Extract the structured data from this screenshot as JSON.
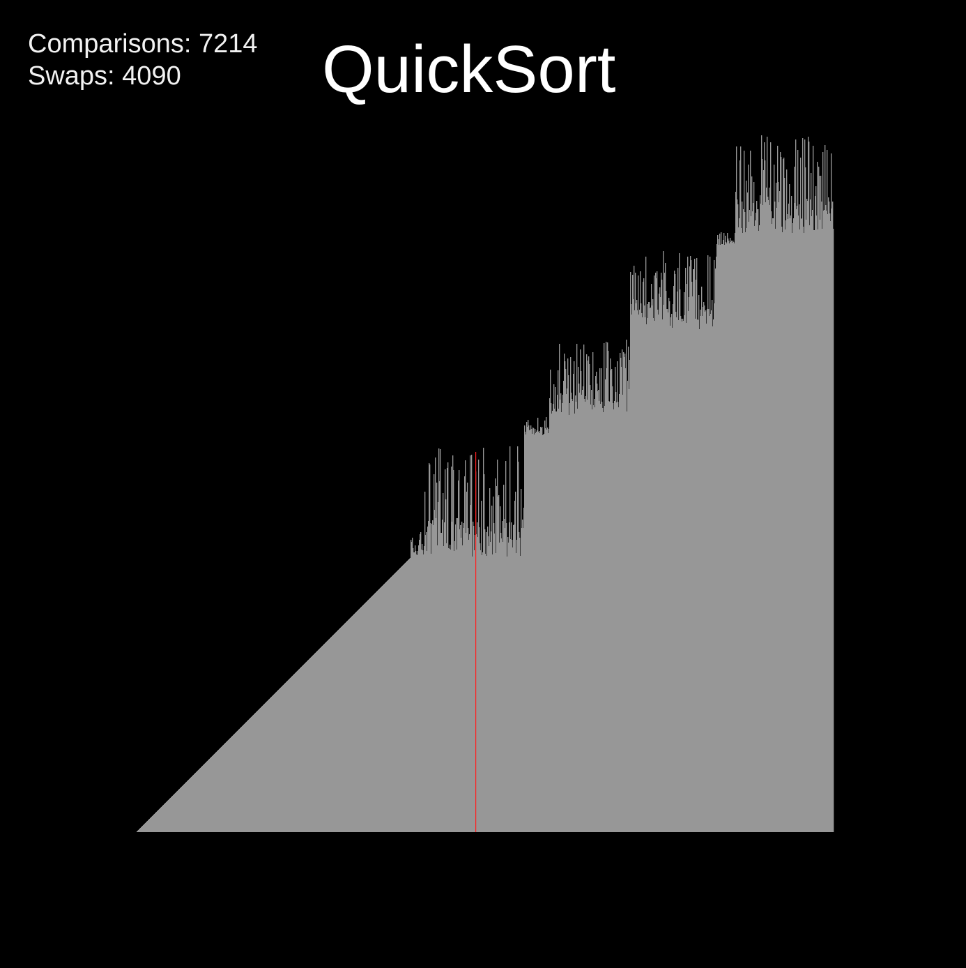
{
  "title": "QuickSort",
  "stats": {
    "comparisons_label": "Comparisons:",
    "comparisons": "7214",
    "swaps_label": "Swaps:",
    "swaps": "4090"
  },
  "colors": {
    "background": "#000000",
    "bar": "#979797",
    "highlight": "#ff2020",
    "text": "#ffffff"
  },
  "array": {
    "length": 1000,
    "max_value": 1000,
    "highlight_index": 486,
    "sorted_prefix_end": 393,
    "partitions": [
      {
        "start": 393,
        "end": 413,
        "low": 395,
        "high": 431
      },
      {
        "start": 413,
        "end": 556,
        "low": 395,
        "high": 554
      },
      {
        "start": 556,
        "end": 592,
        "low": 569,
        "high": 595
      },
      {
        "start": 592,
        "end": 708,
        "low": 598,
        "high": 706
      },
      {
        "start": 708,
        "end": 832,
        "low": 721,
        "high": 835
      },
      {
        "start": 832,
        "end": 858,
        "low": 842,
        "high": 860
      },
      {
        "start": 858,
        "end": 1000,
        "low": 858,
        "high": 1000
      }
    ]
  }
}
